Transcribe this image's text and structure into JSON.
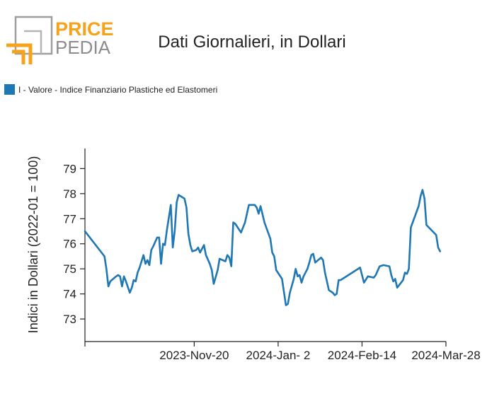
{
  "logo": {
    "word_top": "PRICE",
    "word_bottom": "PEDIA",
    "colors": {
      "orange": "#f7a21b",
      "gray": "#9e9e9e",
      "text_gray": "#8c8c8c"
    }
  },
  "header": {
    "title": "Dati Giornalieri, in Dollari"
  },
  "legend": {
    "items": [
      {
        "label": "I - Valore - Indice Finanziario Plastiche ed Elastomeri",
        "color": "#1f77b4"
      }
    ]
  },
  "chart_data": {
    "type": "line",
    "title": "Dati Giornalieri, in Dollari",
    "xlabel": "",
    "ylabel": "Indici in Dollari (2022-01 = 100)",
    "x_type": "date",
    "xlim": [
      "2023-09-25",
      "2024-03-28"
    ],
    "ylim": [
      72.1,
      79.8
    ],
    "y_ticks": [
      73,
      74,
      75,
      76,
      77,
      78,
      79
    ],
    "x_ticks": [
      {
        "date": "2023-09-25",
        "label": ""
      },
      {
        "date": "2023-11-20",
        "label": "2023-Nov-20"
      },
      {
        "date": "2024-01-02",
        "label": "2024-Jan- 2"
      },
      {
        "date": "2024-02-14",
        "label": "2024-Feb-14"
      },
      {
        "date": "2024-03-28",
        "label": "2024-Mar-28"
      }
    ],
    "grid": false,
    "legend_position": "top-left",
    "series": [
      {
        "name": "I - Valore - Indice Finanziario Plastiche ed Elastomeri",
        "color": "#1f77b4",
        "points": [
          [
            "2023-09-25",
            76.5
          ],
          [
            "2023-10-05",
            75.5
          ],
          [
            "2023-10-06",
            75.0
          ],
          [
            "2023-10-07",
            74.3
          ],
          [
            "2023-10-08",
            74.5
          ],
          [
            "2023-10-11",
            74.7
          ],
          [
            "2023-10-12",
            74.75
          ],
          [
            "2023-10-13",
            74.7
          ],
          [
            "2023-10-14",
            74.3
          ],
          [
            "2023-10-15",
            74.7
          ],
          [
            "2023-10-16",
            74.5
          ],
          [
            "2023-10-18",
            74.05
          ],
          [
            "2023-10-19",
            74.25
          ],
          [
            "2023-10-20",
            74.55
          ],
          [
            "2023-10-21",
            74.5
          ],
          [
            "2023-10-22",
            74.85
          ],
          [
            "2023-10-23",
            75.05
          ],
          [
            "2023-10-25",
            75.55
          ],
          [
            "2023-10-26",
            75.2
          ],
          [
            "2023-10-27",
            75.35
          ],
          [
            "2023-10-28",
            75.15
          ],
          [
            "2023-10-29",
            75.75
          ],
          [
            "2023-10-30",
            75.9
          ],
          [
            "2023-11-01",
            76.25
          ],
          [
            "2023-11-02",
            76.25
          ],
          [
            "2023-11-03",
            75.2
          ],
          [
            "2023-11-04",
            76.0
          ],
          [
            "2023-11-05",
            75.95
          ],
          [
            "2023-11-06",
            76.55
          ],
          [
            "2023-11-08",
            77.55
          ],
          [
            "2023-11-09",
            75.85
          ],
          [
            "2023-11-10",
            76.5
          ],
          [
            "2023-11-11",
            77.65
          ],
          [
            "2023-11-12",
            77.95
          ],
          [
            "2023-11-15",
            77.8
          ],
          [
            "2023-11-16",
            77.45
          ],
          [
            "2023-11-17",
            76.4
          ],
          [
            "2023-11-18",
            75.95
          ],
          [
            "2023-11-19",
            75.7
          ],
          [
            "2023-11-21",
            75.75
          ],
          [
            "2023-11-22",
            75.85
          ],
          [
            "2023-11-23",
            75.65
          ],
          [
            "2023-11-25",
            75.95
          ],
          [
            "2023-11-26",
            75.55
          ],
          [
            "2023-11-28",
            75.2
          ],
          [
            "2023-11-29",
            74.95
          ],
          [
            "2023-11-30",
            74.4
          ],
          [
            "2023-12-02",
            74.95
          ],
          [
            "2023-12-03",
            75.4
          ],
          [
            "2023-12-06",
            75.3
          ],
          [
            "2023-12-07",
            75.55
          ],
          [
            "2023-12-08",
            75.45
          ],
          [
            "2023-12-09",
            75.1
          ],
          [
            "2023-12-10",
            76.85
          ],
          [
            "2023-12-11",
            76.8
          ],
          [
            "2023-12-14",
            76.45
          ],
          [
            "2023-12-16",
            76.85
          ],
          [
            "2023-12-18",
            77.55
          ],
          [
            "2023-12-21",
            77.55
          ],
          [
            "2023-12-22",
            77.45
          ],
          [
            "2023-12-23",
            77.2
          ],
          [
            "2023-12-24",
            77.5
          ],
          [
            "2023-12-26",
            76.85
          ],
          [
            "2023-12-29",
            76.2
          ],
          [
            "2023-12-30",
            75.65
          ],
          [
            "2023-12-31",
            75.5
          ],
          [
            "2024-01-01",
            74.95
          ],
          [
            "2024-01-04",
            74.6
          ],
          [
            "2024-01-06",
            73.55
          ],
          [
            "2024-01-07",
            73.6
          ],
          [
            "2024-01-08",
            74.05
          ],
          [
            "2024-01-10",
            74.6
          ],
          [
            "2024-01-11",
            75.0
          ],
          [
            "2024-01-12",
            74.7
          ],
          [
            "2024-01-13",
            74.75
          ],
          [
            "2024-01-14",
            74.45
          ],
          [
            "2024-01-15",
            74.7
          ],
          [
            "2024-01-17",
            75.0
          ],
          [
            "2024-01-18",
            75.25
          ],
          [
            "2024-01-19",
            75.55
          ],
          [
            "2024-01-20",
            75.6
          ],
          [
            "2024-01-21",
            75.25
          ],
          [
            "2024-01-24",
            75.45
          ],
          [
            "2024-01-25",
            75.35
          ],
          [
            "2024-01-26",
            74.85
          ],
          [
            "2024-01-28",
            74.15
          ],
          [
            "2024-01-30",
            74.05
          ],
          [
            "2024-01-31",
            73.95
          ],
          [
            "2024-02-01",
            74.0
          ],
          [
            "2024-02-02",
            74.55
          ],
          [
            "2024-02-03",
            74.55
          ],
          [
            "2024-02-13",
            75.05
          ],
          [
            "2024-02-15",
            74.45
          ],
          [
            "2024-02-17",
            74.7
          ],
          [
            "2024-02-20",
            74.65
          ],
          [
            "2024-02-21",
            74.75
          ],
          [
            "2024-02-23",
            75.1
          ],
          [
            "2024-02-25",
            75.15
          ],
          [
            "2024-02-28",
            75.1
          ],
          [
            "2024-02-29",
            74.75
          ],
          [
            "2024-03-01",
            74.5
          ],
          [
            "2024-03-02",
            74.6
          ],
          [
            "2024-03-03",
            74.25
          ],
          [
            "2024-03-06",
            74.55
          ],
          [
            "2024-03-07",
            74.85
          ],
          [
            "2024-03-08",
            74.8
          ],
          [
            "2024-03-09",
            75.0
          ],
          [
            "2024-03-10",
            76.65
          ],
          [
            "2024-03-14",
            77.5
          ],
          [
            "2024-03-15",
            77.9
          ],
          [
            "2024-03-16",
            78.15
          ],
          [
            "2024-03-17",
            77.8
          ],
          [
            "2024-03-18",
            76.75
          ],
          [
            "2024-03-23",
            76.35
          ],
          [
            "2024-03-24",
            75.85
          ],
          [
            "2024-03-25",
            75.7
          ]
        ]
      }
    ]
  }
}
